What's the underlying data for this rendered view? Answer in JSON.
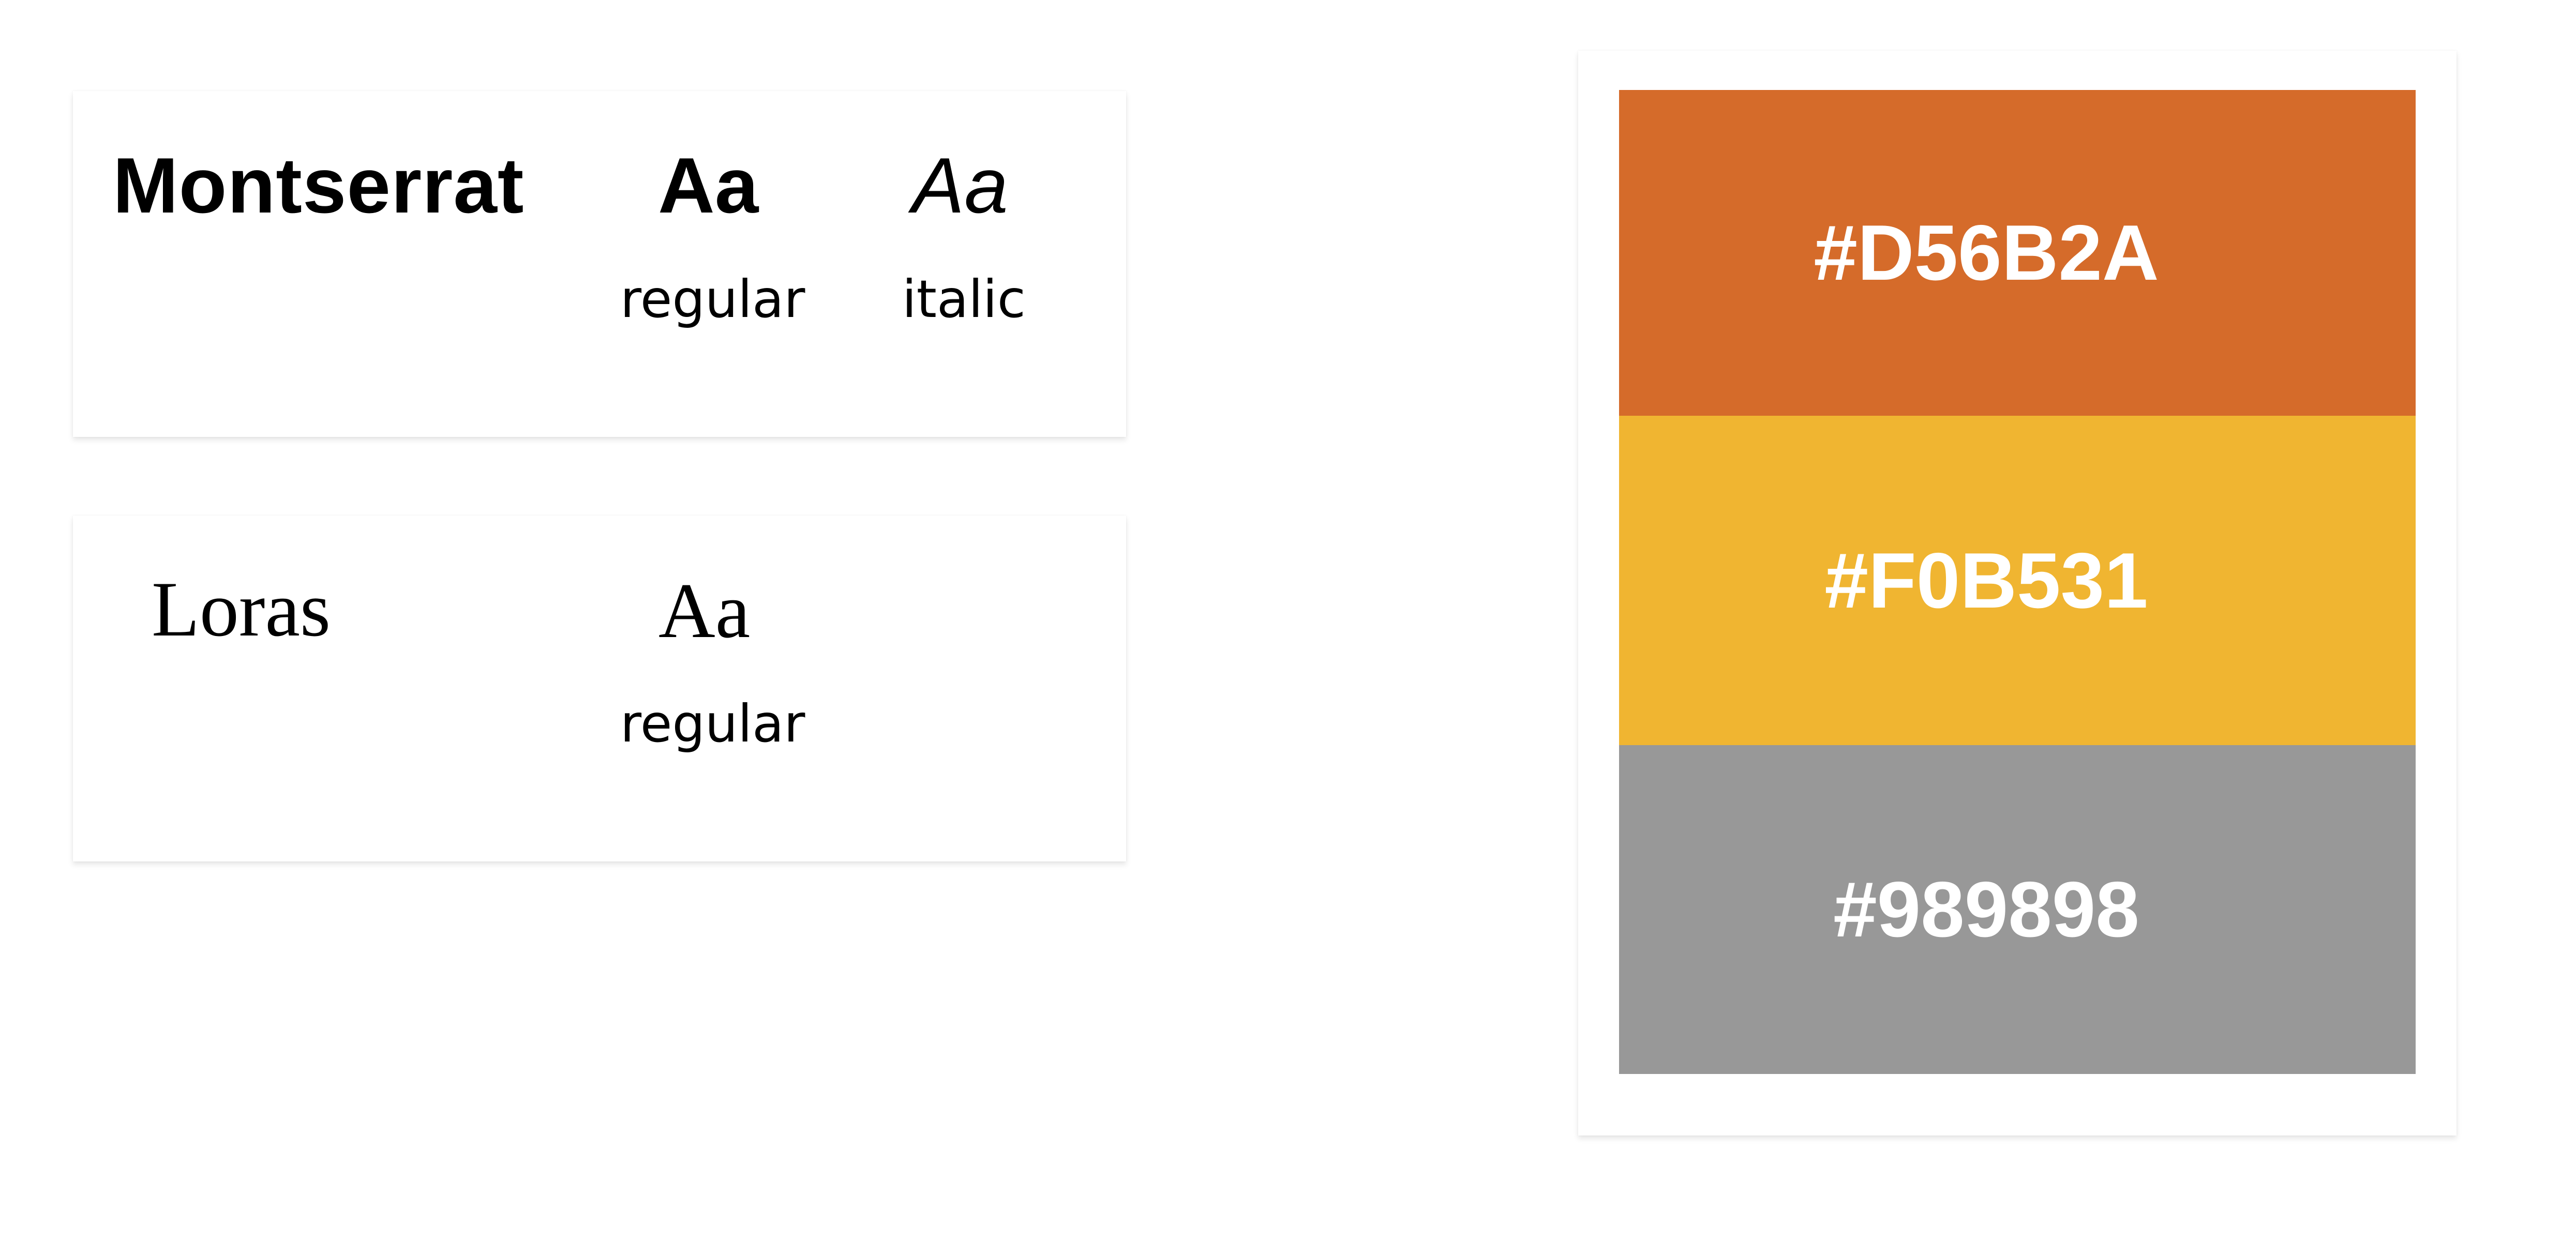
{
  "typography": [
    {
      "font_name": "Montserrat",
      "samples": [
        {
          "glyphs": "Aa",
          "label": "regular"
        },
        {
          "glyphs": "Aa",
          "label": "italic"
        }
      ]
    },
    {
      "font_name": "Loras",
      "samples": [
        {
          "glyphs": "Aa",
          "label": "regular"
        }
      ]
    }
  ],
  "palette": [
    {
      "label": "#D56B2A",
      "color": "#D56B2A"
    },
    {
      "label": "#F0B531",
      "color": "#F0B531"
    },
    {
      "label": "#989898",
      "color": "#989898"
    }
  ]
}
